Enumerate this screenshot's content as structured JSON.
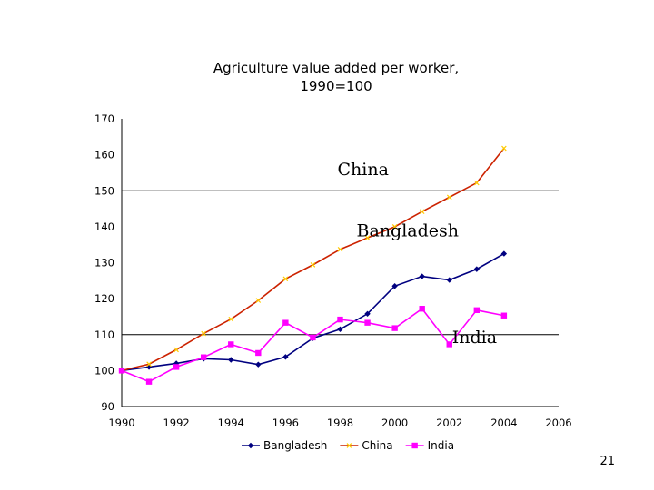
{
  "slide": {
    "page_number": "21"
  },
  "chart_data": {
    "type": "line",
    "title_lines": [
      "Agriculture value added per worker,",
      "1990=100"
    ],
    "xlabel": "",
    "ylabel": "",
    "xlim": [
      1990,
      2006
    ],
    "ylim": [
      90,
      170
    ],
    "x_ticks": [
      "1990",
      "1992",
      "1994",
      "1996",
      "1998",
      "2000",
      "2002",
      "2004",
      "2006"
    ],
    "y_ticks": [
      "170",
      "160",
      "150",
      "140",
      "130",
      "120",
      "110",
      "100",
      "90"
    ],
    "gridlines_y": [
      150,
      110
    ],
    "legend_position": "bottom",
    "x": [
      1990,
      1991,
      1992,
      1993,
      1994,
      1995,
      1996,
      1997,
      1998,
      1999,
      2000,
      2001,
      2002,
      2003,
      2004
    ],
    "series": [
      {
        "name": "Bangladesh",
        "color": "#000080",
        "marker": "diamond",
        "values": [
          100,
          101,
          102,
          103.3,
          103,
          101.7,
          103.8,
          109,
          111.5,
          115.8,
          123.5,
          126.2,
          125.2,
          128.2,
          132.5
        ]
      },
      {
        "name": "China",
        "color": "#cc2200",
        "marker": "cross",
        "values": [
          100,
          101.8,
          105.8,
          110.3,
          114.3,
          119.5,
          125.5,
          129.4,
          133.7,
          136.9,
          140,
          144.2,
          148.2,
          152.2,
          161.8
        ]
      },
      {
        "name": "India",
        "color": "#ff00ff",
        "marker": "square",
        "values": [
          100,
          96.9,
          101,
          103.7,
          107.3,
          104.9,
          113.3,
          109.2,
          114.2,
          113.3,
          111.8,
          117.2,
          107.3,
          116.8,
          115.3
        ]
      }
    ],
    "annotations": [
      {
        "text": "China",
        "x": 1997.9,
        "y": 154.3
      },
      {
        "text": "Bangladesh",
        "x": 1998.6,
        "y": 137.3
      },
      {
        "text": "India",
        "x": 2002.1,
        "y": 107.7
      }
    ]
  }
}
